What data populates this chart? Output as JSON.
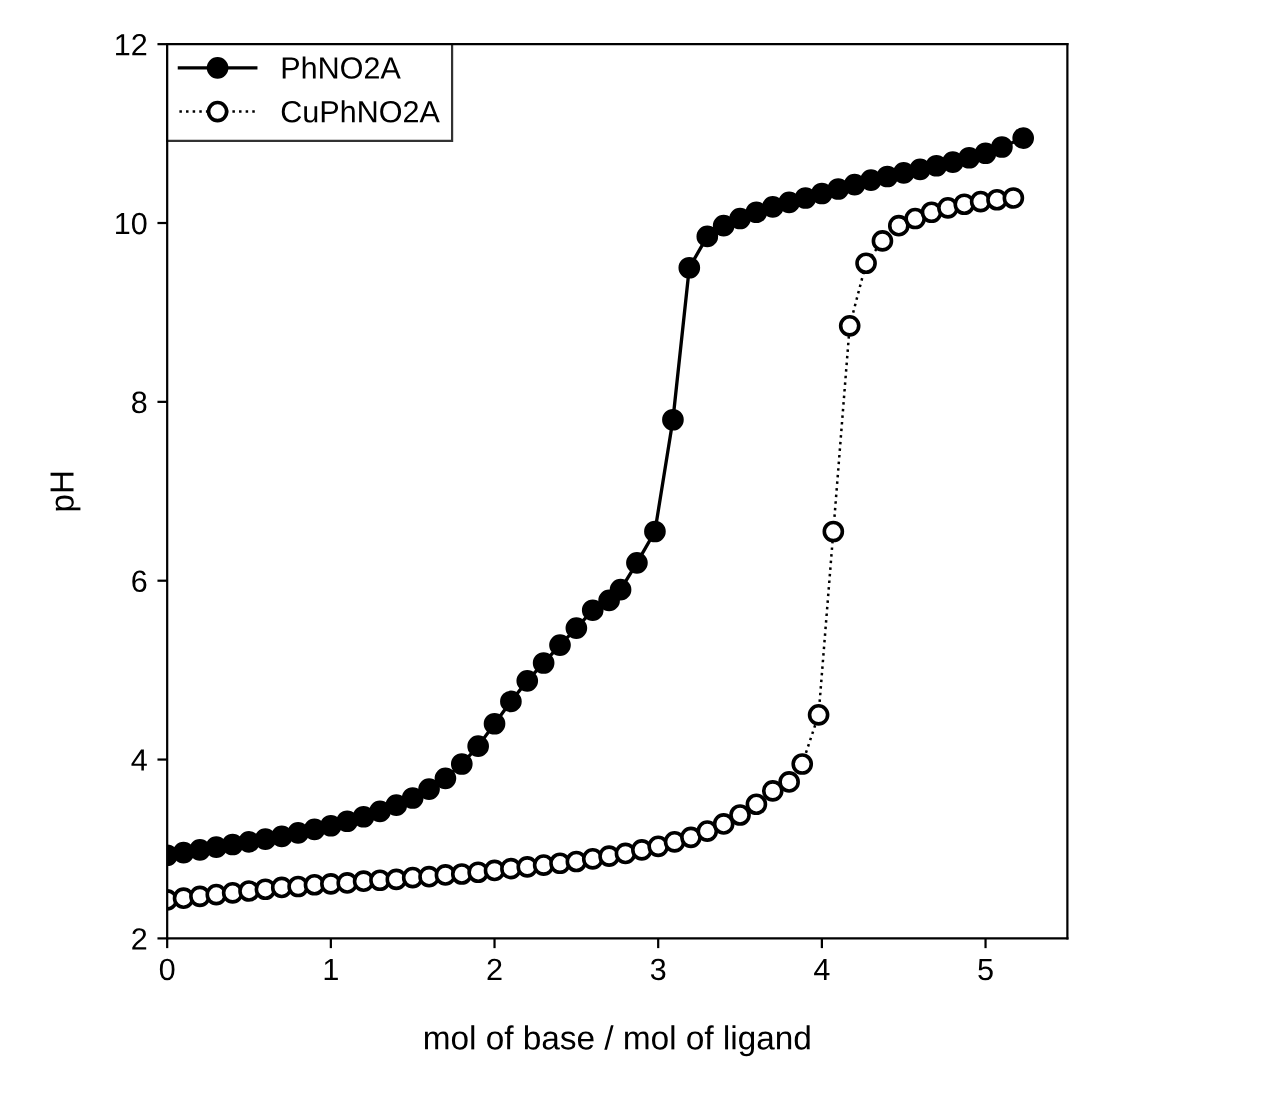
{
  "chart_data": {
    "type": "line",
    "xlabel": "mol of base / mol of ligand",
    "ylabel": "pH",
    "xlim": [
      0,
      5.5
    ],
    "ylim": [
      2,
      12
    ],
    "xticks": [
      0,
      1,
      2,
      3,
      4,
      5
    ],
    "yticks": [
      2,
      4,
      6,
      8,
      10,
      12
    ],
    "grid": false,
    "legend": "top left",
    "marker": "circle",
    "series": [
      {
        "name": "PhNO2A",
        "color": "#000000",
        "line_style": "solid",
        "x": [
          0,
          0.1,
          0.2,
          0.3,
          0.4,
          0.5,
          0.6,
          0.7,
          0.8,
          0.9,
          1.0,
          1.1,
          1.2,
          1.3,
          1.4,
          1.5,
          1.6,
          1.7,
          1.8,
          1.9,
          2.0,
          2.1,
          2.2,
          2.3,
          2.4,
          2.5,
          2.6,
          2.7,
          2.77,
          2.87,
          2.98,
          3.09,
          3.19,
          3.3,
          3.4,
          3.5,
          3.6,
          3.7,
          3.8,
          3.9,
          4.0,
          4.1,
          4.2,
          4.3,
          4.4,
          4.5,
          4.6,
          4.7,
          4.8,
          4.9,
          5.0,
          5.1,
          5.23
        ],
        "values": [
          2.93,
          2.96,
          2.99,
          3.02,
          3.05,
          3.08,
          3.11,
          3.14,
          3.18,
          3.22,
          3.26,
          3.31,
          3.36,
          3.42,
          3.49,
          3.57,
          3.67,
          3.79,
          3.95,
          4.15,
          4.4,
          4.65,
          4.88,
          5.08,
          5.28,
          5.47,
          5.67,
          5.78,
          5.9,
          6.2,
          6.55,
          7.8,
          9.5,
          9.85,
          9.97,
          10.05,
          10.12,
          10.18,
          10.23,
          10.28,
          10.33,
          10.38,
          10.43,
          10.48,
          10.52,
          10.56,
          10.6,
          10.64,
          10.68,
          10.73,
          10.78,
          10.85,
          10.95
        ]
      },
      {
        "name": "CuPhNO2A",
        "color": "#000000",
        "line_style": "dotted",
        "x": [
          0,
          0.1,
          0.2,
          0.3,
          0.4,
          0.5,
          0.6,
          0.7,
          0.8,
          0.9,
          1.0,
          1.1,
          1.2,
          1.3,
          1.4,
          1.5,
          1.6,
          1.7,
          1.8,
          1.9,
          2.0,
          2.1,
          2.2,
          2.3,
          2.4,
          2.5,
          2.6,
          2.7,
          2.8,
          2.9,
          3.0,
          3.1,
          3.2,
          3.3,
          3.4,
          3.5,
          3.6,
          3.7,
          3.8,
          3.88,
          3.98,
          4.07,
          4.17,
          4.27,
          4.37,
          4.47,
          4.57,
          4.67,
          4.77,
          4.87,
          4.97,
          5.07,
          5.17
        ],
        "values": [
          2.43,
          2.45,
          2.47,
          2.49,
          2.51,
          2.53,
          2.55,
          2.57,
          2.58,
          2.6,
          2.61,
          2.62,
          2.64,
          2.65,
          2.66,
          2.68,
          2.69,
          2.71,
          2.72,
          2.74,
          2.76,
          2.78,
          2.8,
          2.82,
          2.84,
          2.86,
          2.89,
          2.92,
          2.95,
          2.99,
          3.03,
          3.08,
          3.13,
          3.2,
          3.28,
          3.38,
          3.5,
          3.65,
          3.75,
          3.95,
          4.5,
          6.55,
          8.85,
          9.55,
          9.8,
          9.97,
          10.05,
          10.12,
          10.17,
          10.21,
          10.24,
          10.26,
          10.28
        ]
      }
    ]
  }
}
